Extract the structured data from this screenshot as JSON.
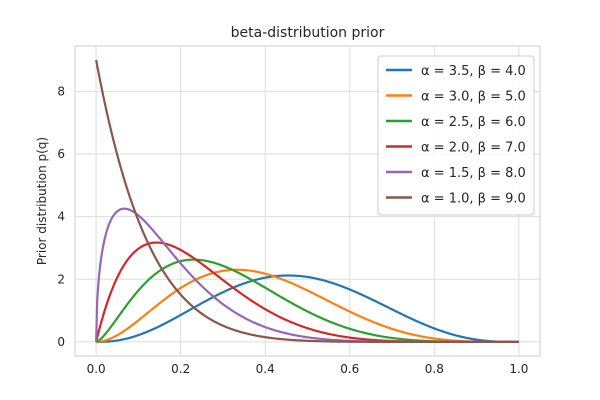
{
  "chart_data": {
    "type": "line",
    "title": "beta-distribution prior",
    "xlabel": "",
    "ylabel": "Prior distribution p(q)",
    "xlim": [
      -0.05,
      1.05
    ],
    "ylim": [
      -0.45,
      9.45
    ],
    "xticks": [
      0.0,
      0.2,
      0.4,
      0.6,
      0.8,
      1.0
    ],
    "xtick_labels": [
      "0.0",
      "0.2",
      "0.4",
      "0.6",
      "0.8",
      "1.0"
    ],
    "yticks": [
      0,
      2,
      4,
      6,
      8
    ],
    "ytick_labels": [
      "0",
      "2",
      "4",
      "6",
      "8"
    ],
    "grid": true,
    "legend_position": "top-right",
    "series": [
      {
        "name": "α = 3.5, β = 4.0",
        "alpha": 3.5,
        "beta": 4.0,
        "color": "#1f77b4"
      },
      {
        "name": "α = 3.0, β = 5.0",
        "alpha": 3.0,
        "beta": 5.0,
        "color": "#ff7f0e"
      },
      {
        "name": "α = 2.5, β = 6.0",
        "alpha": 2.5,
        "beta": 6.0,
        "color": "#2ca02c"
      },
      {
        "name": "α = 2.0, β = 7.0",
        "alpha": 2.0,
        "beta": 7.0,
        "color": "#d62728"
      },
      {
        "name": "α = 1.5, β = 8.0",
        "alpha": 1.5,
        "beta": 8.0,
        "color": "#9467bd"
      },
      {
        "name": "α = 1.0, β = 9.0",
        "alpha": 1.0,
        "beta": 9.0,
        "color": "#8c564b"
      }
    ]
  }
}
